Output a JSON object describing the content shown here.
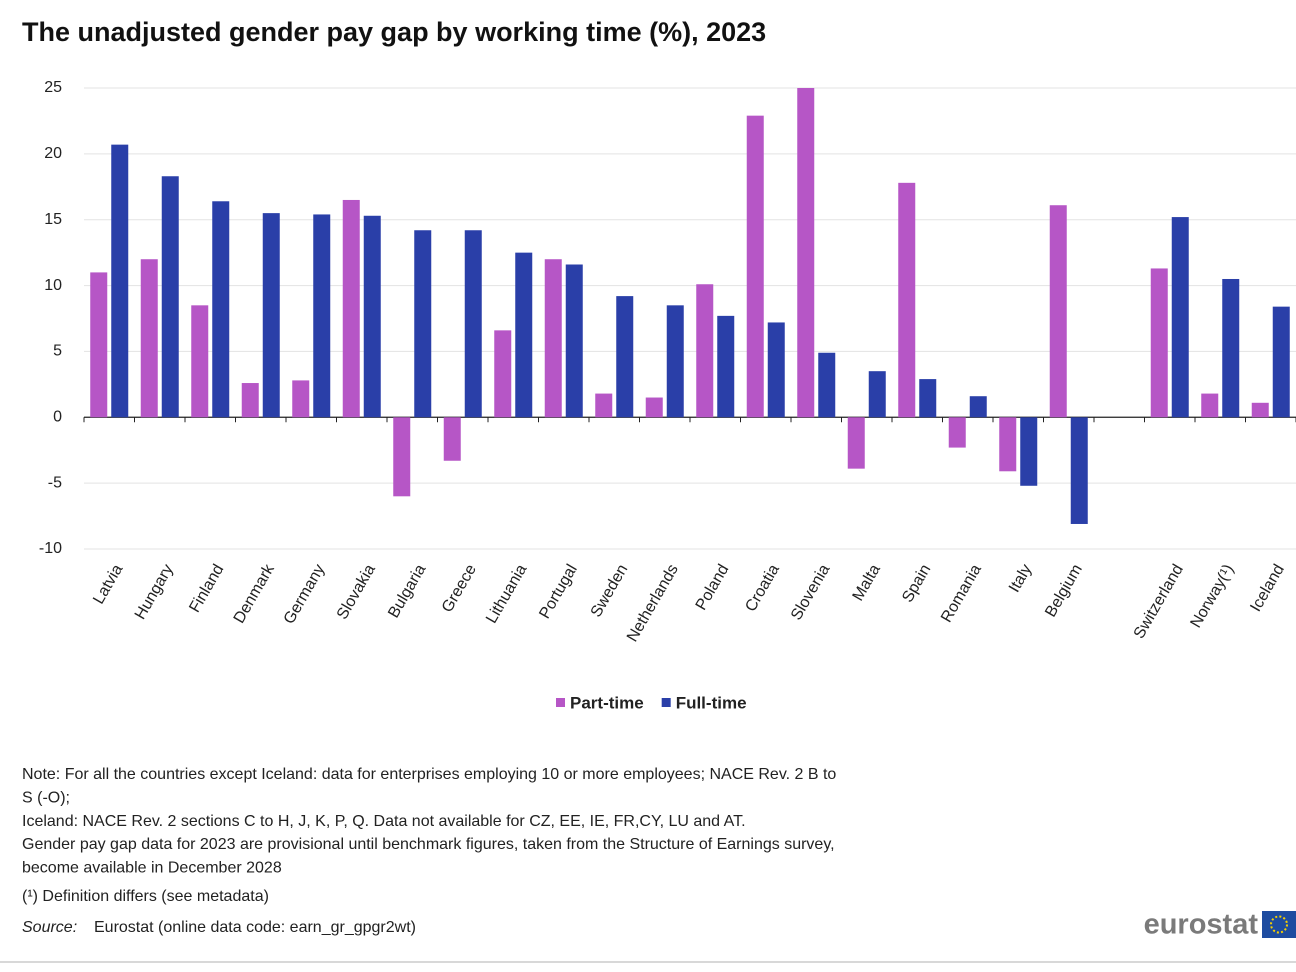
{
  "chart_data": {
    "type": "bar",
    "title": "The unadjusted gender pay gap by working time (%), 2023",
    "categories": [
      "Latvia",
      "Hungary",
      "Finland",
      "Denmark",
      "Germany",
      "Slovakia",
      "Bulgaria",
      "Greece",
      "Lithuania",
      "Portugal",
      "Sweden",
      "Netherlands",
      "Poland",
      "Croatia",
      "Slovenia",
      "Malta",
      "Spain",
      "Romania",
      "Italy",
      "Belgium",
      null,
      "Switzerland",
      "Norway(¹)",
      "Iceland"
    ],
    "series": [
      {
        "name": "Part-time",
        "color": "#b656c6",
        "values": [
          11.0,
          12.0,
          8.5,
          2.6,
          2.8,
          16.5,
          -6.0,
          -3.3,
          6.6,
          12.0,
          1.8,
          1.5,
          10.1,
          22.9,
          25.0,
          -3.9,
          17.8,
          -2.3,
          -4.1,
          16.1,
          null,
          11.3,
          1.8,
          1.1
        ]
      },
      {
        "name": "Full-time",
        "color": "#2a3fa8",
        "values": [
          20.7,
          18.3,
          16.4,
          15.5,
          15.4,
          15.3,
          14.2,
          14.2,
          12.5,
          11.6,
          9.2,
          8.5,
          7.7,
          7.2,
          4.9,
          3.5,
          2.9,
          1.6,
          -5.2,
          -8.1,
          null,
          15.2,
          10.5,
          8.4
        ]
      }
    ],
    "ylim": [
      -10,
      25
    ],
    "yticks": [
      -10,
      -5,
      0,
      5,
      10,
      15,
      20,
      25
    ],
    "grid": true,
    "legend": "bottom"
  },
  "notes": [
    "Note: For all the countries except Iceland: data for enterprises employing 10 or more employees; NACE Rev. 2 B to",
    "S (-O);",
    "Iceland: NACE Rev. 2 sections C to H, J, K, P, Q. Data not available for CZ, EE, IE, FR,CY, LU and AT.",
    "Gender pay gap data for 2023 are provisional until benchmark figures, taken from the Structure of Earnings survey,",
    "become available in December 2028"
  ],
  "footnote": "(¹) Definition differs (see metadata)",
  "source_label": "Source:",
  "source": "Eurostat (online data code: earn_gr_gpgr2wt)",
  "logo": "eurostat"
}
